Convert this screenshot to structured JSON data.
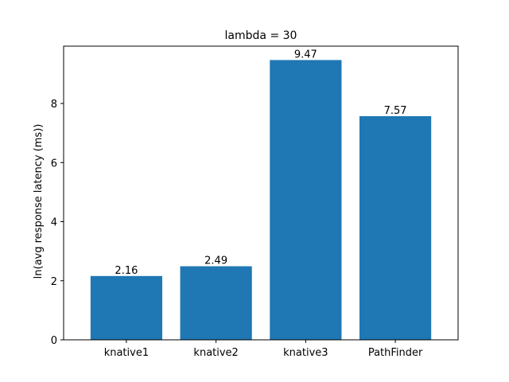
{
  "chart_data": {
    "type": "bar",
    "title": "lambda = 30",
    "xlabel": "",
    "ylabel": "ln(avg response latency (ms))",
    "categories": [
      "knative1",
      "knative2",
      "knative3",
      "PathFinder"
    ],
    "values": [
      2.16,
      2.49,
      9.47,
      7.57
    ],
    "data_labels": [
      "2.16",
      "2.49",
      "9.47",
      "7.57"
    ],
    "ylim": [
      0,
      9.94
    ],
    "yticks": [
      0,
      2,
      4,
      6,
      8
    ],
    "ytick_labels": [
      "0",
      "2",
      "4",
      "6",
      "8"
    ],
    "bar_color": "#1f77b4",
    "grid": false,
    "legend": false
  }
}
